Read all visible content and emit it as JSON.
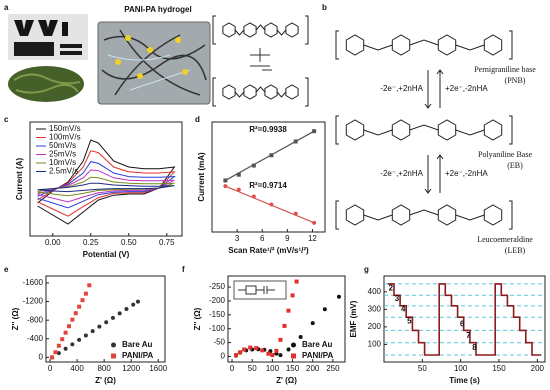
{
  "panel_a": {
    "label": "a",
    "title": "PANI-PA hydrogel"
  },
  "panel_b": {
    "label": "b",
    "states": [
      {
        "name": "Pernigraniline base",
        "abbr": "(PNB)"
      },
      {
        "name": "Polyaniline Base",
        "abbr": "(EB)"
      },
      {
        "name": "Leucoemeraldine",
        "abbr": "(LEB)"
      }
    ],
    "reactions": [
      {
        "forward": "-2e⁻,+2nHA",
        "backward": "+2e⁻,-2nHA"
      },
      {
        "forward": "-2e⁻,+2nHA",
        "backward": "+2e⁻,-2nHA"
      }
    ]
  },
  "chart_data": [
    {
      "label": "c",
      "type": "line",
      "xlabel": "Potential (V)",
      "ylabel": "Current (A)",
      "xlim": [
        -0.15,
        0.85
      ],
      "ylim": [
        -0.8,
        1.1
      ],
      "xticks": [
        {
          "value": 0,
          "label": "0.00"
        },
        {
          "value": 0.25,
          "label": "0.25"
        },
        {
          "value": 0.5,
          "label": "0.50"
        },
        {
          "value": 0.75,
          "label": "0.75"
        }
      ],
      "legend": "upper left",
      "x": [
        -0.1,
        0,
        0.1,
        0.2,
        0.25,
        0.3,
        0.4,
        0.5,
        0.6,
        0.7,
        0.8,
        0.7,
        0.6,
        0.5,
        0.4,
        0.3,
        0.2,
        0.1,
        0,
        -0.1
      ],
      "series": [
        {
          "name": "150mV/s",
          "color": "#111111",
          "values": [
            -0.25,
            -0.05,
            0.1,
            0.45,
            0.8,
            0.75,
            0.45,
            0.35,
            0.32,
            0.32,
            0.35,
            0,
            -0.1,
            -0.1,
            -0.12,
            -0.2,
            -0.4,
            -0.6,
            -0.45,
            -0.3
          ]
        },
        {
          "name": "100mV/s",
          "color": "#e0302a",
          "values": [
            -0.2,
            -0.04,
            0.08,
            0.35,
            0.62,
            0.59,
            0.35,
            0.27,
            0.25,
            0.25,
            0.27,
            0,
            -0.08,
            -0.08,
            -0.09,
            -0.16,
            -0.31,
            -0.47,
            -0.35,
            -0.23
          ]
        },
        {
          "name": "50mV/s",
          "color": "#2a3fd8",
          "values": [
            -0.14,
            -0.03,
            0.06,
            0.25,
            0.44,
            0.41,
            0.25,
            0.19,
            0.18,
            0.18,
            0.19,
            0,
            -0.06,
            -0.06,
            -0.07,
            -0.11,
            -0.22,
            -0.33,
            -0.25,
            -0.17
          ]
        },
        {
          "name": "25mV/s",
          "color": "#c030c0",
          "values": [
            -0.1,
            -0.02,
            0.04,
            0.17,
            0.3,
            0.29,
            0.17,
            0.13,
            0.12,
            0.12,
            0.13,
            0,
            -0.04,
            -0.04,
            -0.05,
            -0.08,
            -0.15,
            -0.23,
            -0.17,
            -0.11
          ]
        },
        {
          "name": "10mV/s",
          "color": "#7a8a1a",
          "values": [
            -0.06,
            -0.01,
            0.02,
            0.1,
            0.18,
            0.17,
            0.1,
            0.08,
            0.07,
            0.07,
            0.08,
            0,
            -0.02,
            -0.02,
            -0.03,
            -0.04,
            -0.09,
            -0.13,
            -0.1,
            -0.07
          ]
        },
        {
          "name": "2.5mV/s",
          "color": "#1a2a80",
          "values": [
            -0.03,
            -0.01,
            0.01,
            0.05,
            0.08,
            0.08,
            0.05,
            0.04,
            0.03,
            0.03,
            0.04,
            0,
            -0.01,
            -0.01,
            -0.01,
            -0.02,
            -0.04,
            -0.06,
            -0.05,
            -0.03
          ]
        }
      ]
    },
    {
      "label": "d",
      "type": "scatter",
      "xlabel": "Scan Rate¹/² (mV/s¹/²)",
      "ylabel": "Current (mA)",
      "xlim": [
        0,
        13.5
      ],
      "ylim": [
        -4.2,
        5.4
      ],
      "xticks": [
        3,
        6,
        9,
        12
      ],
      "fit": true,
      "annotations": [
        "R²=0.9938",
        "R²=0.9714"
      ],
      "x": [
        1.6,
        3.2,
        5,
        7.1,
        10,
        12.2
      ],
      "series": [
        {
          "color": "#555555",
          "marker": "square",
          "values": [
            0.3,
            0.8,
            1.6,
            2.5,
            3.7,
            4.6
          ]
        },
        {
          "color": "#d9534f",
          "marker": "circle",
          "values": [
            -0.2,
            -0.5,
            -1.1,
            -1.8,
            -2.6,
            -3.4
          ]
        }
      ]
    },
    {
      "label": "e",
      "type": "scatter",
      "xlabel": "Z' (Ω)",
      "ylabel": "Z'' (Ω)",
      "xlim": [
        -60,
        1700
      ],
      "ylim": [
        100,
        -1750
      ],
      "xticks": [
        0,
        400,
        800,
        1200,
        1600
      ],
      "yticks": [
        0,
        -400,
        -800,
        -1200,
        -1600
      ],
      "legend": "lower right",
      "series": [
        {
          "name": "Bare Au",
          "color": "#333333",
          "marker": "circle",
          "x": [
            30,
            130,
            230,
            330,
            430,
            530,
            630,
            730,
            830,
            930,
            1030,
            1130,
            1230,
            1300
          ],
          "values": [
            0,
            -90,
            -185,
            -280,
            -375,
            -470,
            -565,
            -660,
            -755,
            -850,
            -945,
            -1040,
            -1135,
            -1200
          ]
        },
        {
          "name": "PANI/PA",
          "color": "#e0463c",
          "marker": "square",
          "x": [
            30,
            80,
            130,
            180,
            230,
            280,
            330,
            380,
            430,
            480,
            530,
            580
          ],
          "values": [
            0,
            -110,
            -250,
            -390,
            -530,
            -670,
            -810,
            -950,
            -1090,
            -1230,
            -1370,
            -1550
          ]
        }
      ]
    },
    {
      "label": "f",
      "type": "scatter",
      "xlabel": "Z' (Ω)",
      "ylabel": "Z'' (Ω)",
      "xlim": [
        -10,
        280
      ],
      "ylim": [
        20,
        -290
      ],
      "xticks": [
        0,
        50,
        100,
        150,
        200,
        250
      ],
      "yticks": [
        0,
        -50,
        -100,
        -150,
        -200,
        -250
      ],
      "legend": "lower right",
      "series": [
        {
          "name": "Bare Au",
          "color": "#111111",
          "marker": "circle",
          "x": [
            10,
            20,
            35,
            50,
            65,
            80,
            95,
            110,
            120,
            140,
            170,
            200,
            230,
            265
          ],
          "values": [
            -3,
            -14,
            -22,
            -25,
            -26,
            -24,
            -19,
            -10,
            -5,
            -25,
            -70,
            -120,
            -170,
            -215
          ]
        },
        {
          "name": "PANI/PA",
          "color": "#e0302a",
          "marker": "square",
          "x": [
            10,
            20,
            30,
            45,
            60,
            75,
            90,
            100,
            110,
            120,
            130,
            140,
            150,
            160
          ],
          "values": [
            -5,
            -15,
            -25,
            -32,
            -30,
            -22,
            -10,
            -5,
            -20,
            -60,
            -110,
            -165,
            -220,
            -270
          ]
        }
      ]
    },
    {
      "label": "g",
      "type": "line",
      "xlabel": "Time (s)",
      "ylabel": "EMF (mV)",
      "xlim": [
        0,
        210
      ],
      "ylim": [
        0,
        490
      ],
      "xticks": [
        50,
        100,
        150,
        200
      ],
      "yticks": [
        100,
        200,
        300,
        400
      ],
      "hlines": [
        445,
        380,
        320,
        255,
        180,
        110,
        40
      ],
      "hline_color": "#5bc8dc",
      "annotations": [
        "2",
        "3",
        "4",
        "5",
        "6",
        "7",
        "8"
      ],
      "x": [
        5,
        13,
        13,
        21,
        21,
        29,
        29,
        37,
        37,
        45,
        45,
        53,
        53,
        72,
        72,
        80,
        80,
        88,
        88,
        96,
        96,
        104,
        104,
        112,
        112,
        120,
        120,
        145,
        145,
        153,
        153,
        161,
        161,
        169,
        169,
        177,
        177,
        185,
        185,
        193,
        193,
        205
      ],
      "series": [
        {
          "color": "#8b1a1a",
          "values": [
            445,
            445,
            380,
            380,
            320,
            320,
            255,
            255,
            180,
            180,
            110,
            110,
            40,
            40,
            445,
            445,
            380,
            380,
            320,
            320,
            255,
            255,
            180,
            180,
            110,
            110,
            40,
            40,
            445,
            445,
            380,
            380,
            320,
            320,
            255,
            255,
            180,
            180,
            110,
            110,
            40,
            40
          ]
        }
      ]
    }
  ]
}
